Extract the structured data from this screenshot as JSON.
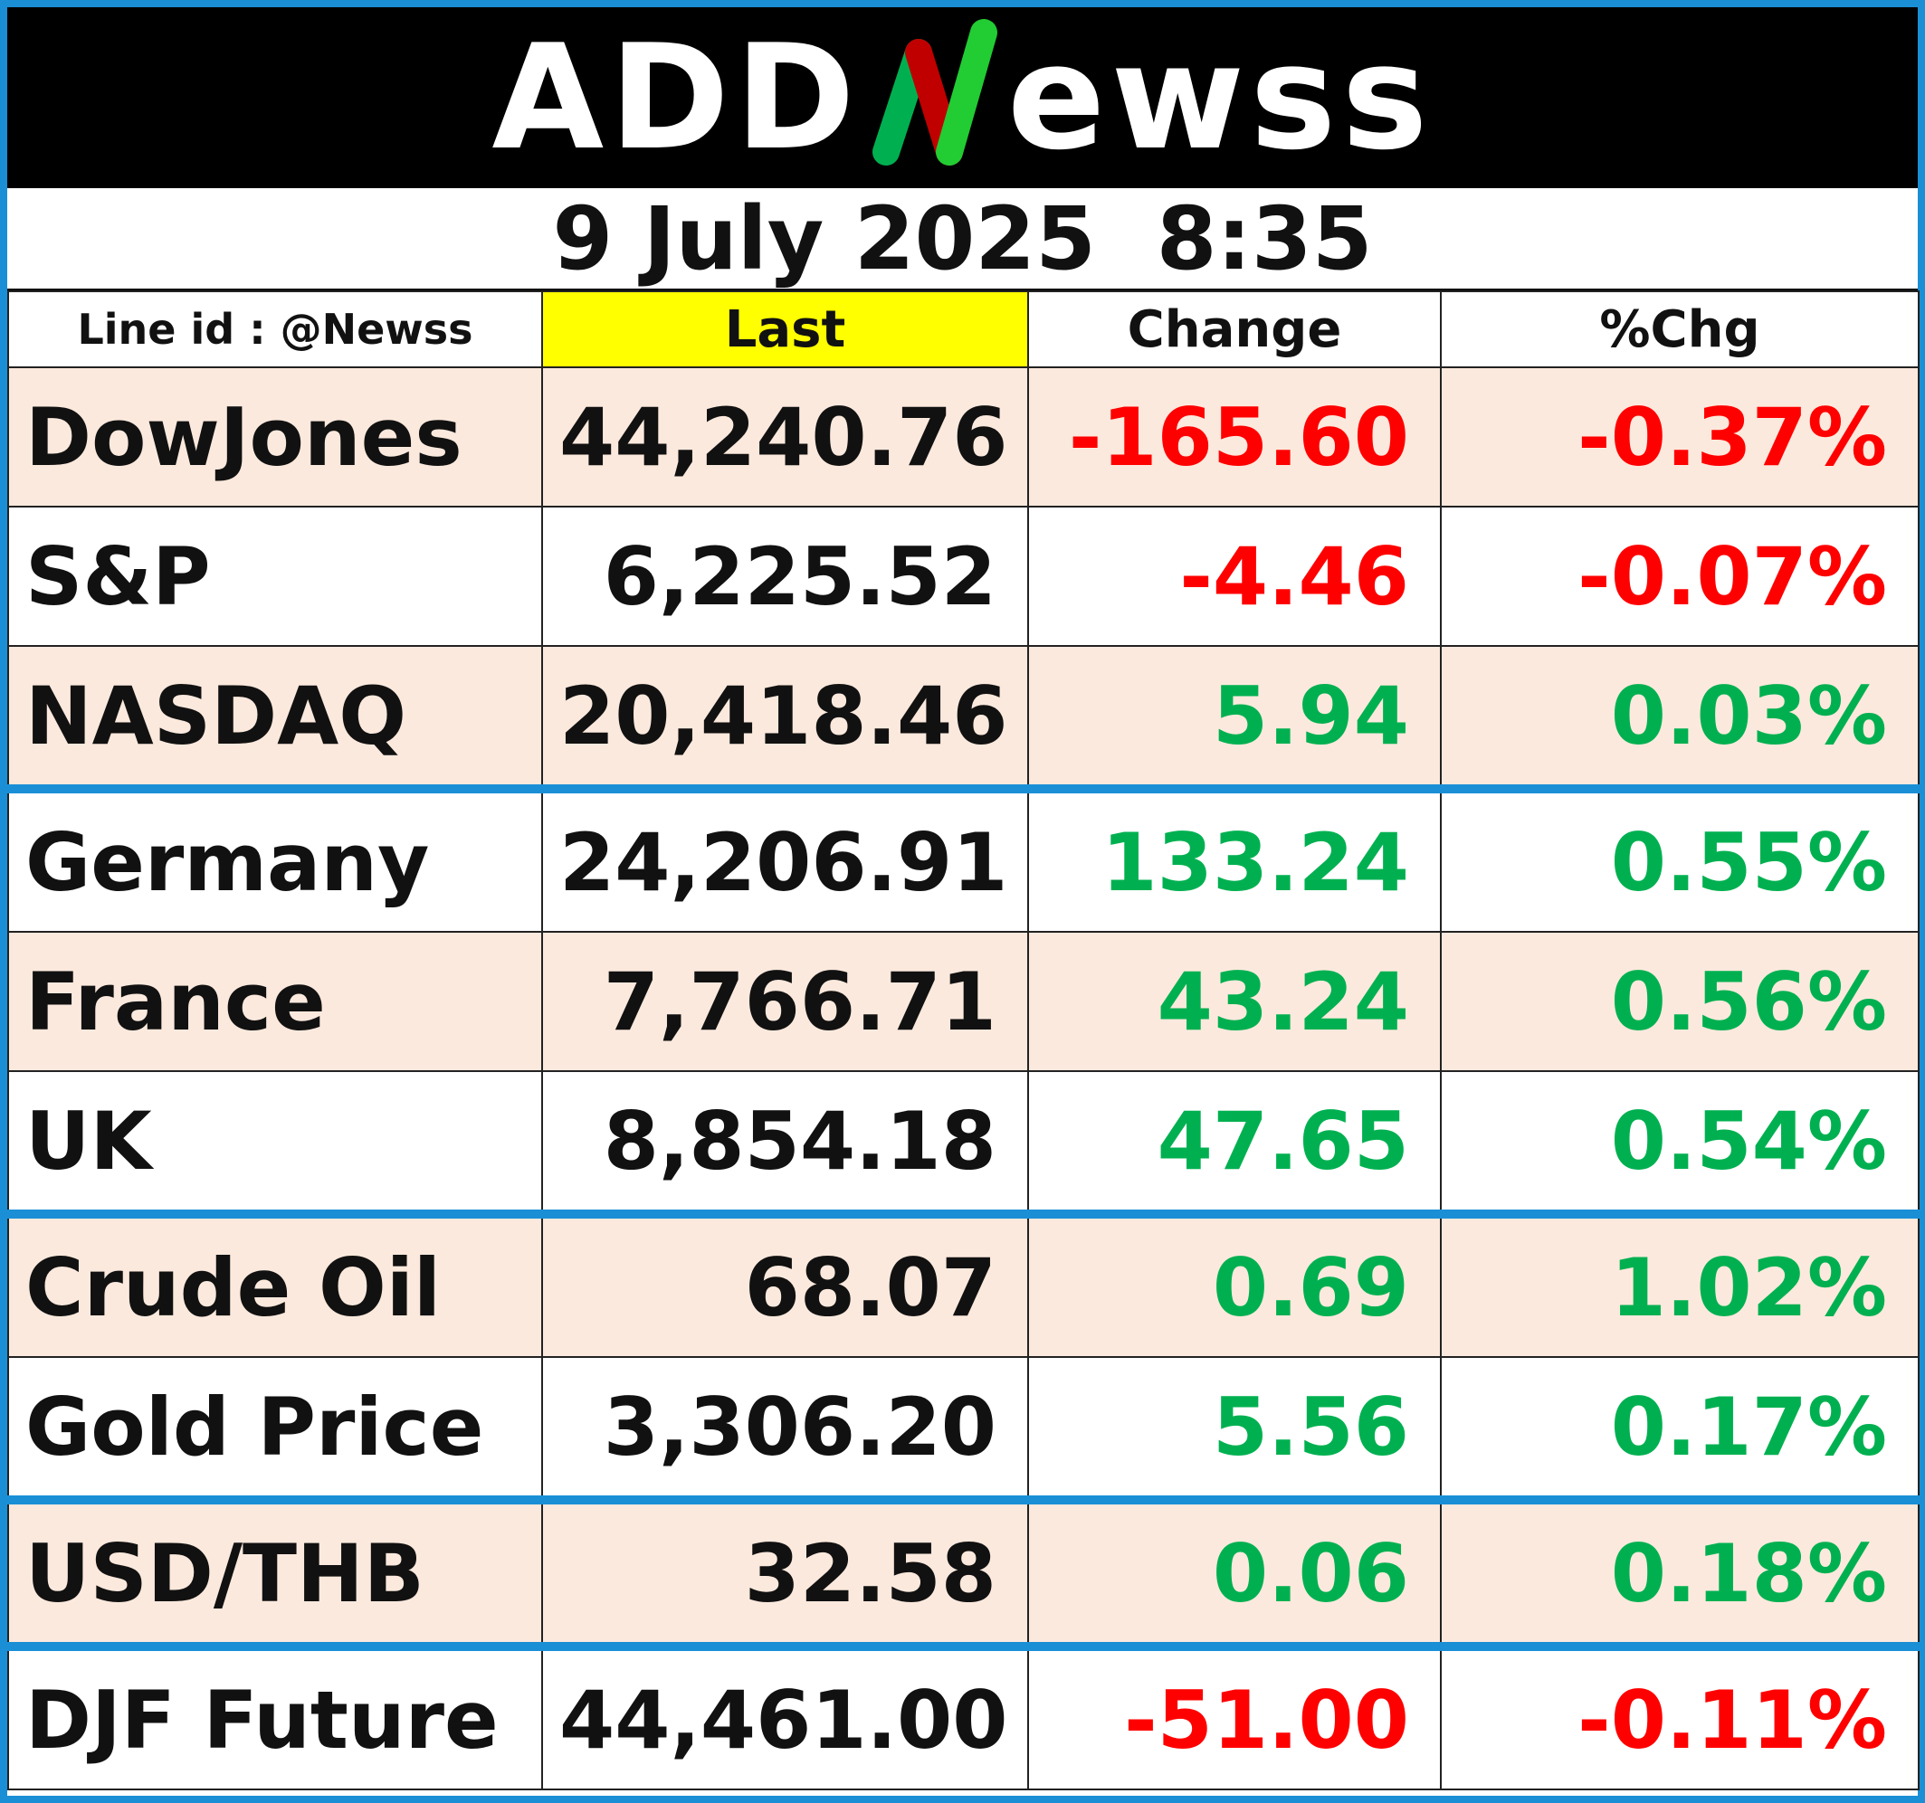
{
  "brand": {
    "logo_text_left": "ADD",
    "logo_text_mid": "N",
    "logo_text_right": "ewss",
    "colors": {
      "green": "#00b050",
      "red": "#c00000",
      "accent_border": "#1a8fd6",
      "peach": "#fce9dd",
      "yellow": "#ffff00"
    }
  },
  "date_time": "9 July 2025  8:35",
  "headers": {
    "line_id": "Line id : @Newss",
    "last": "Last",
    "change": "Change",
    "pct_change": "%Chg"
  },
  "rows": [
    {
      "name": "DowJones",
      "last": "44,240.76",
      "change": "-165.60",
      "pct": "-0.37%",
      "direction": "neg"
    },
    {
      "name": "S&P",
      "last": "6,225.52",
      "change": "-4.46",
      "pct": "-0.07%",
      "direction": "neg"
    },
    {
      "name": "NASDAQ",
      "last": "20,418.46",
      "change": "5.94",
      "pct": "0.03%",
      "direction": "pos"
    },
    {
      "name": "Germany",
      "last": "24,206.91",
      "change": "133.24",
      "pct": "0.55%",
      "direction": "pos"
    },
    {
      "name": "France",
      "last": "7,766.71",
      "change": "43.24",
      "pct": "0.56%",
      "direction": "pos"
    },
    {
      "name": "UK",
      "last": "8,854.18",
      "change": "47.65",
      "pct": "0.54%",
      "direction": "pos"
    },
    {
      "name": "Crude Oil",
      "last": "68.07",
      "change": "0.69",
      "pct": "1.02%",
      "direction": "pos"
    },
    {
      "name": "Gold Price",
      "last": "3,306.20",
      "change": "5.56",
      "pct": "0.17%",
      "direction": "pos"
    },
    {
      "name": "USD/THB",
      "last": "32.58",
      "change": "0.06",
      "pct": "0.18%",
      "direction": "pos"
    },
    {
      "name": "DJF Future",
      "last": "44,461.00",
      "change": "-51.00",
      "pct": "-0.11%",
      "direction": "neg"
    }
  ]
}
